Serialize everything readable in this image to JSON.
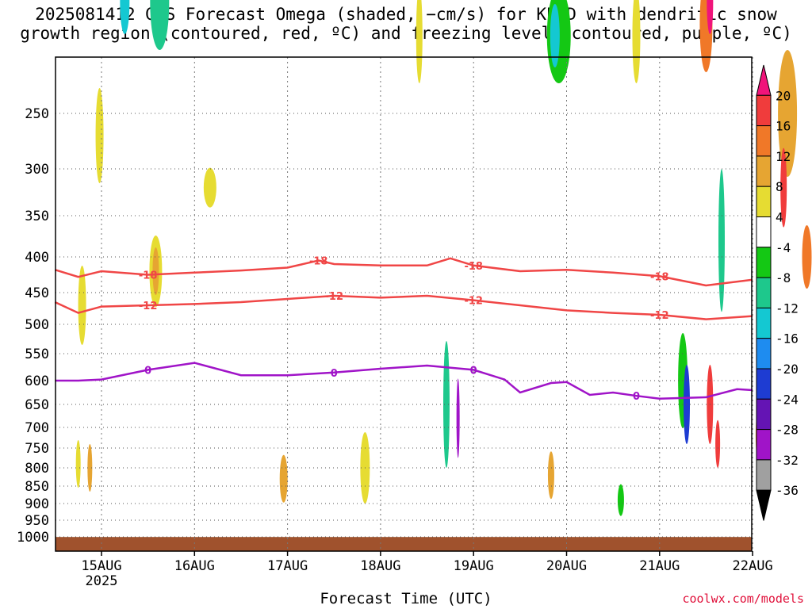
{
  "title": {
    "line1": "2025081412 GFS Forecast Omega (shaded, −cm/s) for KPVD with dendritic snow",
    "line2": "growth region (contoured, red, ºC) and freezing level (contoured, purple, ºC)"
  },
  "credit": "coolwx.com/models",
  "chart_data": {
    "type": "heatmap",
    "title": "2025081412 GFS Forecast Omega (shaded, −cm/s) for KPVD with dendritic snow growth region (contoured, red, ºC) and freezing level (contoured, purple, ºC)",
    "xlabel": "Forecast Time (UTC)",
    "ylabel": "",
    "x_ticks": [
      "15AUG",
      "16AUG",
      "17AUG",
      "18AUG",
      "19AUG",
      "20AUG",
      "21AUG",
      "22AUG"
    ],
    "x_tick_sublabel": "2025",
    "x_range_hours": [
      -12,
      168
    ],
    "y_ticks": [
      250,
      300,
      350,
      400,
      450,
      500,
      550,
      600,
      650,
      700,
      750,
      800,
      850,
      900,
      950,
      1000
    ],
    "y_range": [
      200,
      1010
    ],
    "grid": true,
    "colorbar": {
      "levels": [
        20,
        16,
        12,
        8,
        4,
        -4,
        -8,
        -12,
        -16,
        -20,
        -24,
        -28,
        -32,
        -36
      ],
      "colors": [
        "#f0147a",
        "#f03c3c",
        "#f07828",
        "#e6a532",
        "#e6dc32",
        "#ffffff",
        "#14c814",
        "#1ec88c",
        "#14c8d2",
        "#1e8cf0",
        "#1e3cd2",
        "#6414b4",
        "#a014c8",
        "#a0a0a0",
        "#000000"
      ],
      "units": "−cm/s"
    },
    "contours": [
      {
        "label": "-18",
        "color": "#f04646",
        "points": [
          [
            -12,
            418
          ],
          [
            -6,
            428
          ],
          [
            0,
            420
          ],
          [
            12,
            425
          ],
          [
            24,
            422
          ],
          [
            36,
            419
          ],
          [
            48,
            415
          ],
          [
            56,
            405
          ],
          [
            60,
            410
          ],
          [
            72,
            412
          ],
          [
            84,
            412
          ],
          [
            90,
            402
          ],
          [
            96,
            412
          ],
          [
            108,
            420
          ],
          [
            120,
            418
          ],
          [
            132,
            422
          ],
          [
            144,
            427
          ],
          [
            156,
            440
          ],
          [
            168,
            432
          ]
        ]
      },
      {
        "label": "-12",
        "color": "#f04646",
        "points": [
          [
            -12,
            465
          ],
          [
            -6,
            482
          ],
          [
            0,
            472
          ],
          [
            12,
            470
          ],
          [
            24,
            468
          ],
          [
            36,
            465
          ],
          [
            48,
            460
          ],
          [
            60,
            455
          ],
          [
            72,
            458
          ],
          [
            84,
            455
          ],
          [
            96,
            462
          ],
          [
            108,
            470
          ],
          [
            120,
            478
          ],
          [
            132,
            482
          ],
          [
            144,
            485
          ],
          [
            156,
            492
          ],
          [
            168,
            487
          ]
        ]
      },
      {
        "label": "0",
        "color": "#a014c8",
        "points": [
          [
            -12,
            600
          ],
          [
            -6,
            600
          ],
          [
            0,
            598
          ],
          [
            12,
            580
          ],
          [
            24,
            567
          ],
          [
            36,
            590
          ],
          [
            48,
            590
          ],
          [
            60,
            585
          ],
          [
            72,
            578
          ],
          [
            84,
            572
          ],
          [
            96,
            580
          ],
          [
            104,
            598
          ],
          [
            108,
            625
          ],
          [
            116,
            605
          ],
          [
            120,
            603
          ],
          [
            126,
            630
          ],
          [
            132,
            625
          ],
          [
            138,
            632
          ],
          [
            144,
            638
          ],
          [
            156,
            635
          ],
          [
            164,
            618
          ],
          [
            168,
            620
          ]
        ]
      }
    ],
    "ground_pressure": 1010
  }
}
